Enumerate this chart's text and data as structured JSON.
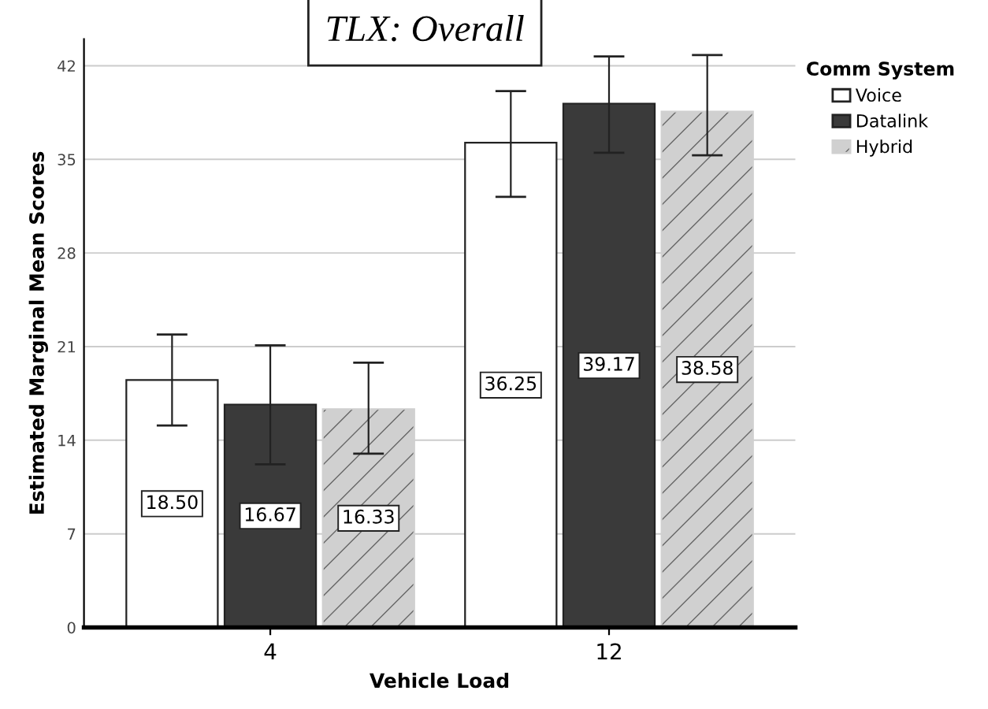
{
  "chart_data": {
    "type": "bar",
    "title": "TLX: Overall",
    "xlabel": "Vehicle Load",
    "ylabel": "Estimated Marginal Mean Scores",
    "legend_title": "Comm System",
    "categories": [
      "4",
      "12"
    ],
    "series": [
      {
        "name": "Voice",
        "color": "#ffffff",
        "values": [
          18.5,
          36.25
        ],
        "value_labels": [
          "18.50",
          "36.25"
        ],
        "errors": [
          [
            15.1,
            21.9
          ],
          [
            32.2,
            40.1
          ]
        ]
      },
      {
        "name": "Datalink",
        "color": "#3a3a3a",
        "values": [
          16.67,
          39.17
        ],
        "value_labels": [
          "16.67",
          "39.17"
        ],
        "errors": [
          [
            12.2,
            21.1
          ],
          [
            35.5,
            42.7
          ]
        ]
      },
      {
        "name": "Hybrid",
        "color": "#d0d0d0",
        "values": [
          16.33,
          38.58
        ],
        "value_labels": [
          "16.33",
          "38.58"
        ],
        "errors": [
          [
            13.0,
            19.8
          ],
          [
            35.3,
            42.8
          ]
        ]
      }
    ],
    "ylim": [
      0,
      44
    ],
    "yticks": [
      0,
      7,
      14,
      21,
      28,
      35,
      42
    ],
    "grid": "y",
    "legend": "right"
  }
}
